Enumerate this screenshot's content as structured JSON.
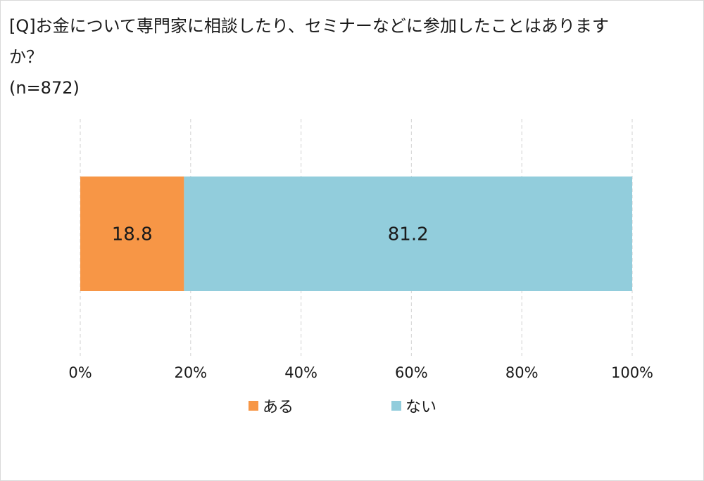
{
  "title": {
    "line1": "[Q]お金について専門家に相談したり、セミナーなどに参加したことはありますか？",
    "line1_display": "[Q]お金について専門家に相談したり、セミナーなどに参加したことはあります",
    "line2": "か？",
    "line3": "(n=872)"
  },
  "chart_data": {
    "type": "bar",
    "orientation": "horizontal",
    "stacked": "percent",
    "categories": [
      ""
    ],
    "series": [
      {
        "name": "ある",
        "values": [
          18.8
        ],
        "color": "#f79646"
      },
      {
        "name": "ない",
        "values": [
          81.2
        ],
        "color": "#92cddc"
      }
    ],
    "data_labels": [
      "18.8",
      "81.2"
    ],
    "x_ticks": [
      "0%",
      "20%",
      "40%",
      "60%",
      "80%",
      "100%"
    ],
    "xlim": [
      0,
      100
    ],
    "grid": "vertical dashed",
    "legend_position": "bottom"
  },
  "legend": {
    "items": [
      {
        "label": "ある",
        "color": "#f79646"
      },
      {
        "label": "ない",
        "color": "#92cddc"
      }
    ]
  }
}
